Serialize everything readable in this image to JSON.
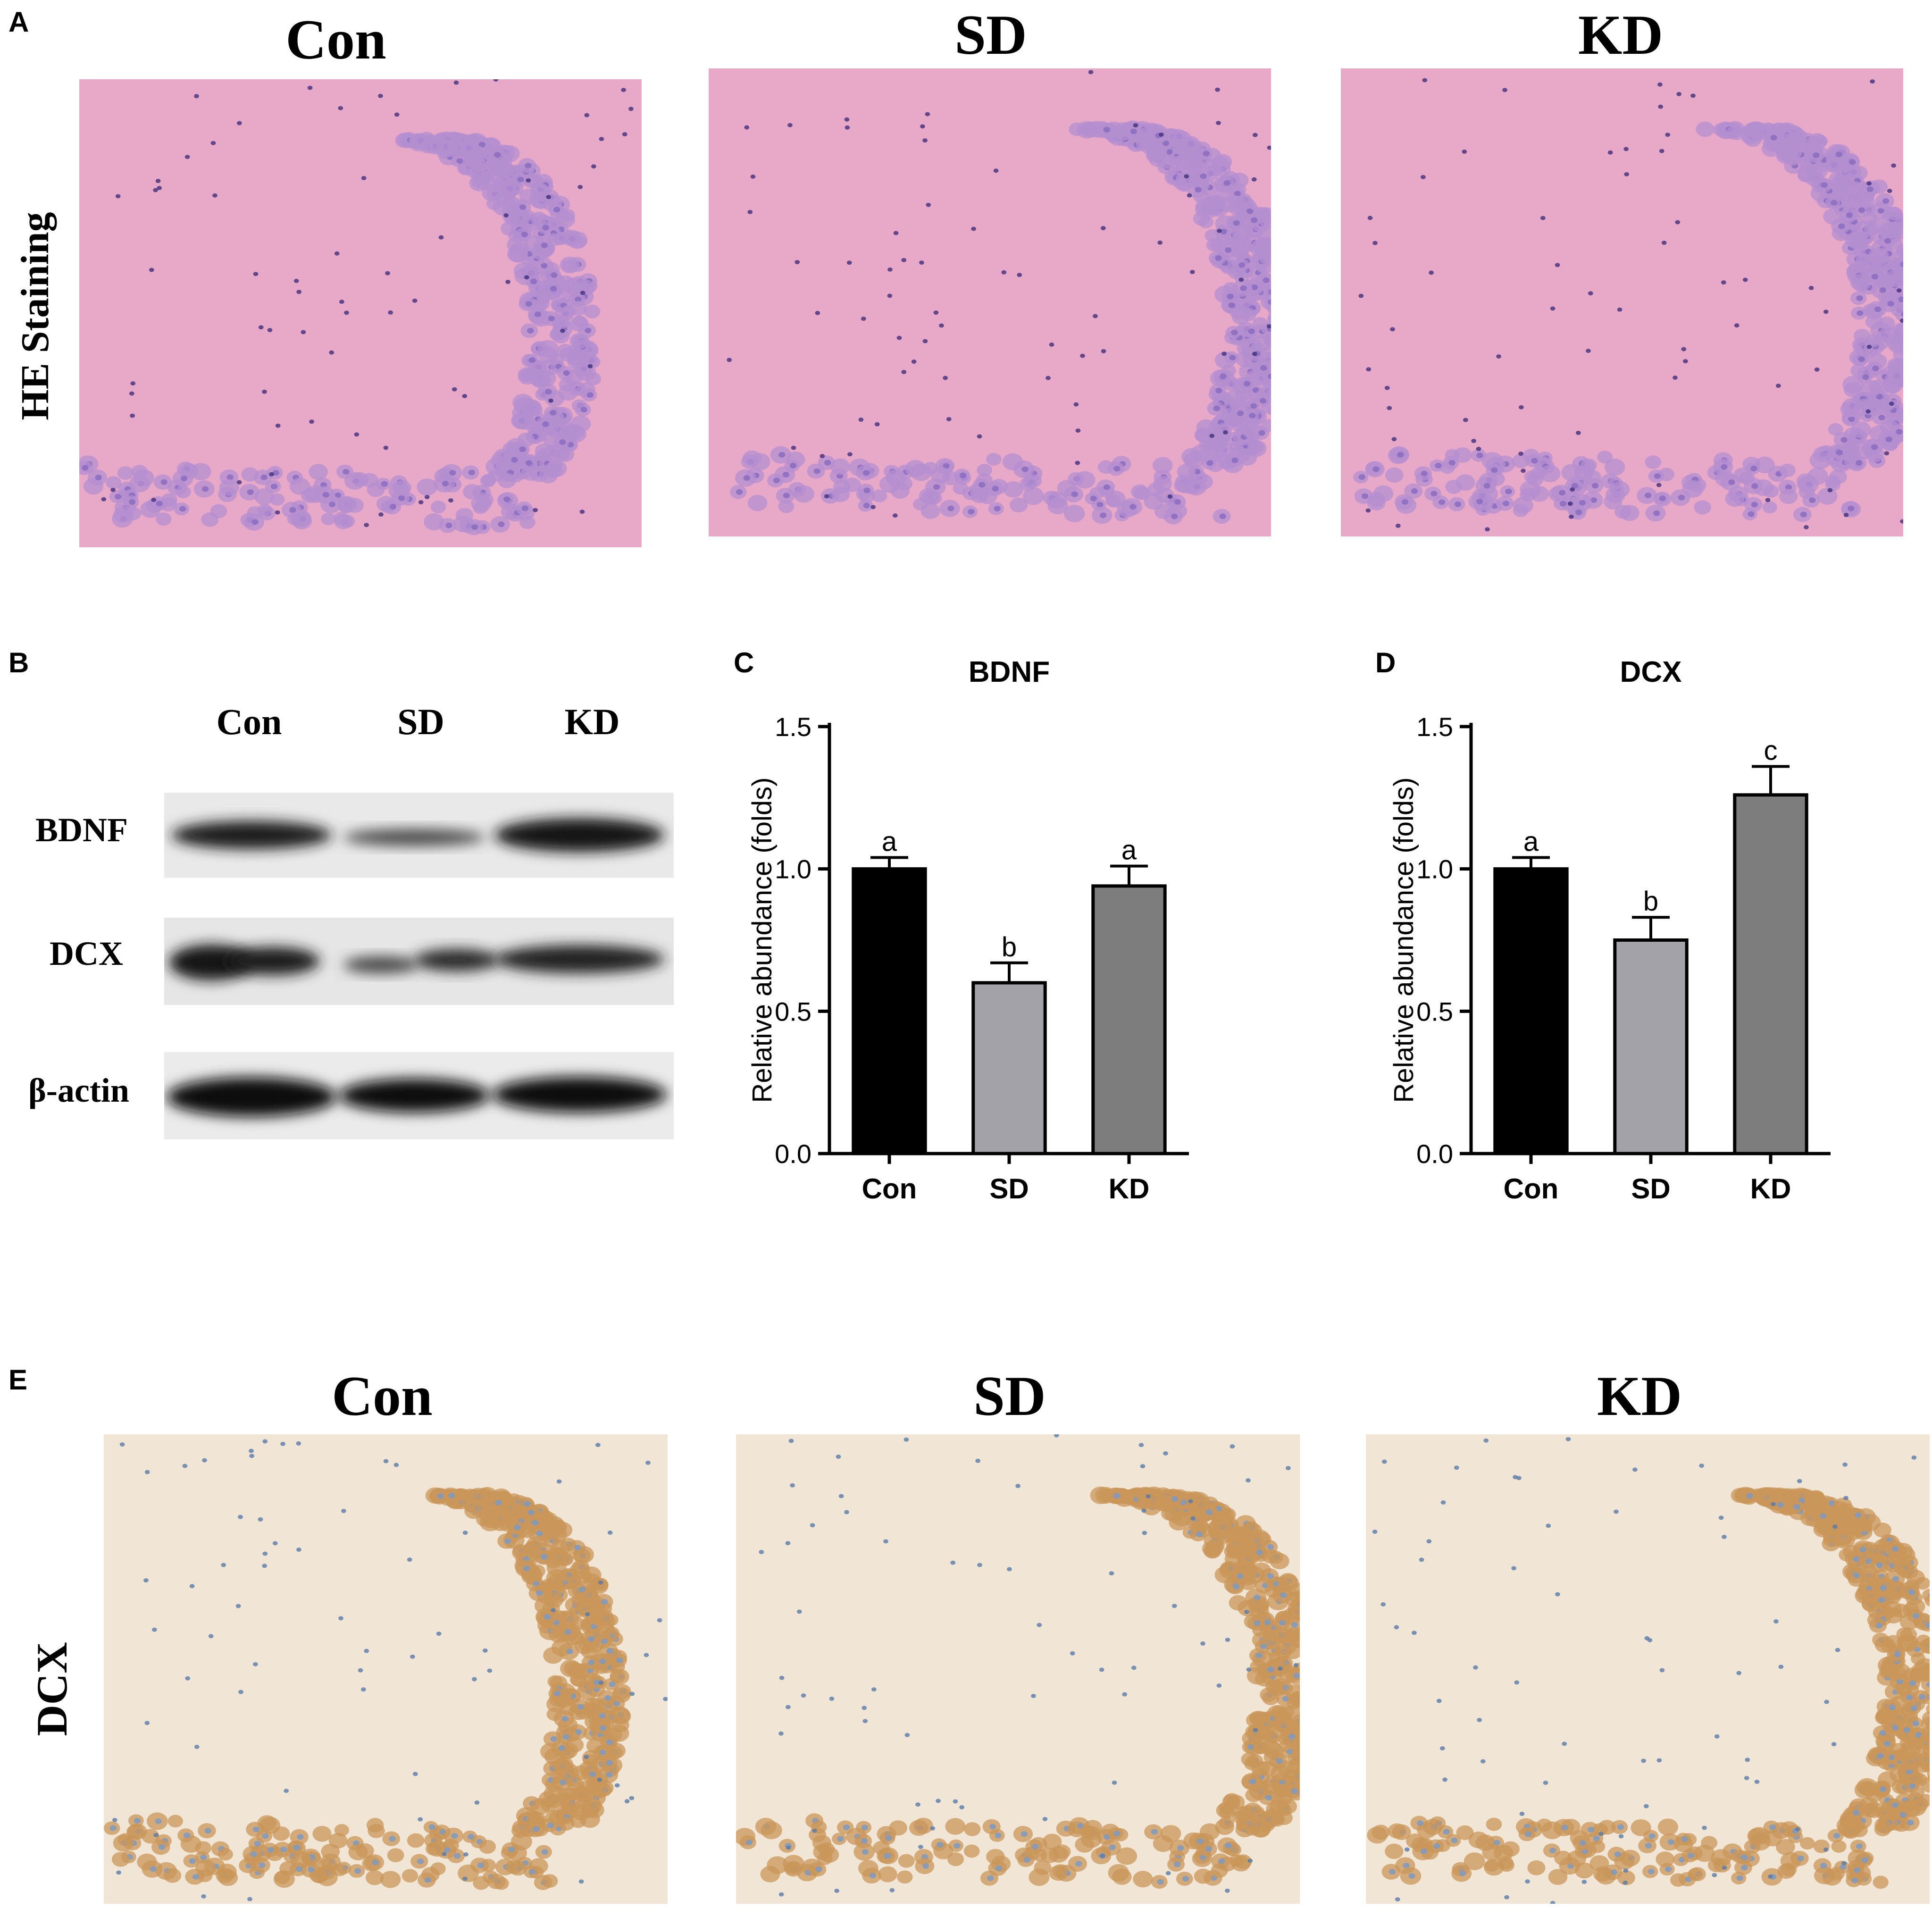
{
  "panel_a": {
    "letter": "A",
    "row_label": "HE Staining",
    "columns": [
      "Con",
      "SD",
      "KD"
    ]
  },
  "panel_b": {
    "letter": "B",
    "lanes": [
      "Con",
      "SD",
      "KD"
    ],
    "rows": [
      "BDNF",
      "DCX",
      "β-actin"
    ]
  },
  "panel_e": {
    "letter": "E",
    "row_label": "DCX",
    "columns": [
      "Con",
      "SD",
      "KD"
    ]
  },
  "colors": {
    "he_background": "#e8a8c8",
    "he_nuclei": "#8a6cc0",
    "ihc_background": "#f1e6d6",
    "ihc_cells": "#c9965a",
    "ihc_nuclei": "#7f9ac0",
    "bar_con": "#000000",
    "bar_sd": "#a3a2a8",
    "bar_kd": "#7d7d7d"
  },
  "chart_data": [
    {
      "panel": "C",
      "type": "bar",
      "title": "BDNF",
      "ylabel": "Relative abundance (folds)",
      "xlabel": "",
      "categories": [
        "Con",
        "SD",
        "KD"
      ],
      "values": [
        1.0,
        0.6,
        0.94
      ],
      "errors": [
        0.04,
        0.07,
        0.07
      ],
      "significance_letters": [
        "a",
        "b",
        "a"
      ],
      "ylim": [
        0,
        1.5
      ],
      "yticks": [
        "0.0",
        "0.5",
        "1.0",
        "1.5"
      ]
    },
    {
      "panel": "D",
      "type": "bar",
      "title": "DCX",
      "ylabel": "Relative abundance (folds)",
      "xlabel": "",
      "categories": [
        "Con",
        "SD",
        "KD"
      ],
      "values": [
        1.0,
        0.75,
        1.26
      ],
      "errors": [
        0.04,
        0.08,
        0.1
      ],
      "significance_letters": [
        "a",
        "b",
        "c"
      ],
      "ylim": [
        0,
        1.5
      ],
      "yticks": [
        "0.0",
        "0.5",
        "1.0",
        "1.5"
      ]
    }
  ]
}
